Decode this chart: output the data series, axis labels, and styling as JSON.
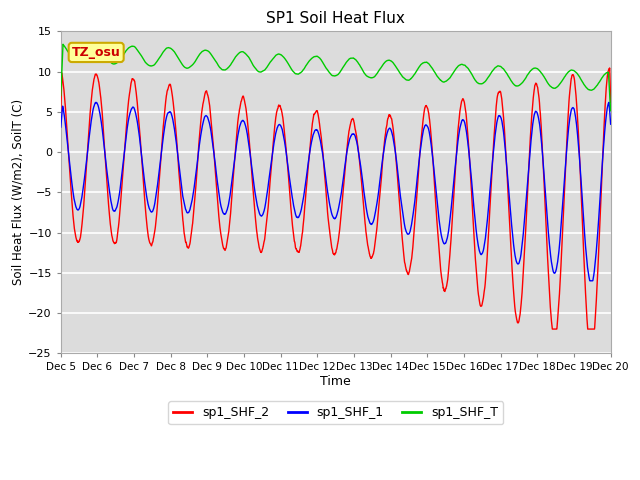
{
  "title": "SP1 Soil Heat Flux",
  "xlabel": "Time",
  "ylabel": "Soil Heat Flux (W/m2), SoilT (C)",
  "ylim": [
    -25,
    15
  ],
  "yticks": [
    -25,
    -20,
    -15,
    -10,
    -5,
    0,
    5,
    10,
    15
  ],
  "xtick_labels": [
    "Dec 5",
    "Dec 6",
    "Dec 7",
    "Dec 8",
    "Dec 9",
    "Dec 10",
    "Dec 11",
    "Dec 12",
    "Dec 13",
    "Dec 14",
    "Dec 15",
    "Dec 16",
    "Dec 17",
    "Dec 18",
    "Dec 19",
    "Dec 20"
  ],
  "plot_bg": "#dcdcdc",
  "fig_bg": "#ffffff",
  "grid_color": "#ffffff",
  "line_colors": {
    "shf2": "#ff0000",
    "shf1": "#0000ff",
    "shft": "#00cc00"
  },
  "legend_labels": [
    "sp1_SHF_2",
    "sp1_SHF_1",
    "sp1_SHF_T"
  ],
  "annotation_text": "TZ_osu",
  "annotation_bg": "#ffff99",
  "annotation_fg": "#cc0000",
  "annotation_border": "#ccaa00"
}
